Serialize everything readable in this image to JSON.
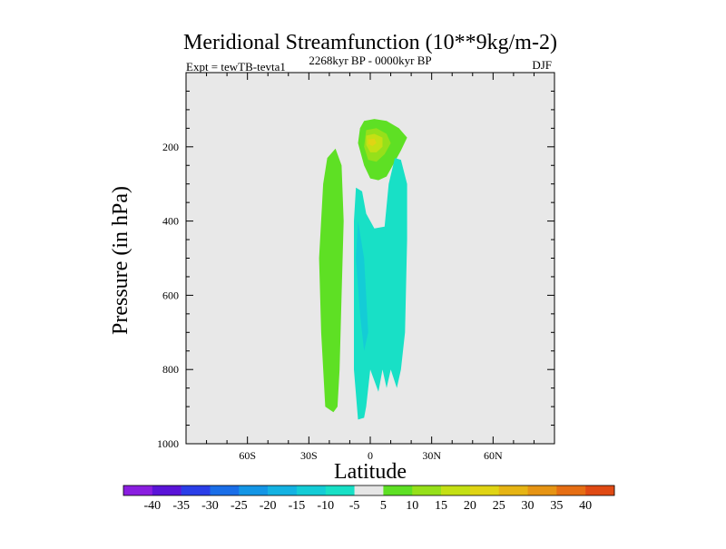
{
  "chart_data": {
    "type": "filled-contour",
    "title": "Meridional Streamfunction (10**9kg/m-2)",
    "subtitle_left": "Expt = tewTB-tevta1",
    "subtitle_center": "2268kyr BP - 0000kyr BP",
    "subtitle_right": "DJF",
    "xlabel": "Latitude",
    "ylabel": "Pressure (in hPa)",
    "xlim": [
      -90,
      90
    ],
    "ylim": [
      1000,
      0
    ],
    "x_ticks": [
      {
        "value": -60,
        "label": "60S"
      },
      {
        "value": -30,
        "label": "30S"
      },
      {
        "value": 0,
        "label": "0"
      },
      {
        "value": 30,
        "label": "30N"
      },
      {
        "value": 60,
        "label": "60N"
      }
    ],
    "y_ticks": [
      {
        "value": 200,
        "label": "200"
      },
      {
        "value": 400,
        "label": "400"
      },
      {
        "value": 600,
        "label": "600"
      },
      {
        "value": 800,
        "label": "800"
      },
      {
        "value": 1000,
        "label": "1000"
      }
    ],
    "colorbar": {
      "labels": [
        "-40",
        "-35",
        "-30",
        "-25",
        "-20",
        "-15",
        "-10",
        "-5",
        "5",
        "10",
        "15",
        "20",
        "25",
        "30",
        "35",
        "40"
      ],
      "colors": [
        "#8a1ee0",
        "#5a14d8",
        "#2a3ee8",
        "#1a6ee8",
        "#1496e6",
        "#14b2e2",
        "#14ccd6",
        "#18e0c6",
        "#e6e6e6",
        "#5ee024",
        "#96e01a",
        "#c4e014",
        "#e0d414",
        "#e6b414",
        "#e69414",
        "#e66e14",
        "#e04a14"
      ]
    },
    "regions": [
      {
        "name": "positive-cell-south",
        "value_range": "5 to 10",
        "color": "#5ee024",
        "points": [
          [
            -17,
            205
          ],
          [
            -14,
            250
          ],
          [
            -13,
            400
          ],
          [
            -14,
            600
          ],
          [
            -15,
            800
          ],
          [
            -16,
            900
          ],
          [
            -18,
            915
          ],
          [
            -22,
            900
          ],
          [
            -24,
            700
          ],
          [
            -25,
            500
          ],
          [
            -23,
            300
          ],
          [
            -21,
            230
          ]
        ]
      },
      {
        "name": "upper-cell-outer",
        "value_range": "5 to 10",
        "color": "#5ee024",
        "points": [
          [
            -3,
            130
          ],
          [
            2,
            125
          ],
          [
            8,
            130
          ],
          [
            14,
            150
          ],
          [
            18,
            175
          ],
          [
            15,
            210
          ],
          [
            11,
            250
          ],
          [
            8,
            280
          ],
          [
            4,
            290
          ],
          [
            0,
            285
          ],
          [
            -3,
            250
          ],
          [
            -6,
            190
          ],
          [
            -5,
            150
          ]
        ]
      },
      {
        "name": "upper-cell-middle",
        "value_range": "10 to 15",
        "color": "#96e01a",
        "points": [
          [
            -2,
            155
          ],
          [
            3,
            150
          ],
          [
            8,
            165
          ],
          [
            10,
            190
          ],
          [
            7,
            220
          ],
          [
            3,
            240
          ],
          [
            -1,
            235
          ],
          [
            -3,
            200
          ]
        ]
      },
      {
        "name": "upper-cell-inner",
        "value_range": "15 to 20",
        "color": "#c4e014",
        "points": [
          [
            -2,
            170
          ],
          [
            2,
            165
          ],
          [
            6,
            175
          ],
          [
            6,
            200
          ],
          [
            3,
            215
          ],
          [
            0,
            215
          ],
          [
            -2,
            195
          ]
        ]
      },
      {
        "name": "upper-cell-core",
        "value_range": "20 to 25",
        "color": "#e0d414",
        "points": [
          [
            -1,
            180
          ],
          [
            2,
            178
          ],
          [
            3,
            190
          ],
          [
            1,
            198
          ],
          [
            -1,
            192
          ]
        ]
      },
      {
        "name": "negative-cell",
        "value_range": "-10 to -5",
        "color": "#18e0c6",
        "points": [
          [
            -7,
            310
          ],
          [
            -4,
            320
          ],
          [
            -2,
            380
          ],
          [
            2,
            420
          ],
          [
            7,
            415
          ],
          [
            9,
            300
          ],
          [
            12,
            230
          ],
          [
            15,
            235
          ],
          [
            18,
            300
          ],
          [
            18,
            450
          ],
          [
            17,
            700
          ],
          [
            15,
            800
          ],
          [
            13,
            850
          ],
          [
            10,
            800
          ],
          [
            8,
            850
          ],
          [
            6,
            800
          ],
          [
            4,
            860
          ],
          [
            0,
            800
          ],
          [
            -2,
            900
          ],
          [
            -3,
            930
          ],
          [
            -6,
            935
          ],
          [
            -8,
            800
          ],
          [
            -8,
            600
          ],
          [
            -8,
            400
          ]
        ]
      },
      {
        "name": "negative-cell-core",
        "value_range": "-15 to -10",
        "color": "#14ccd6",
        "points": [
          [
            -6,
            400
          ],
          [
            -3,
            500
          ],
          [
            -2,
            600
          ],
          [
            -1,
            700
          ],
          [
            -3,
            750
          ],
          [
            -5,
            650
          ],
          [
            -7,
            500
          ]
        ]
      }
    ]
  }
}
